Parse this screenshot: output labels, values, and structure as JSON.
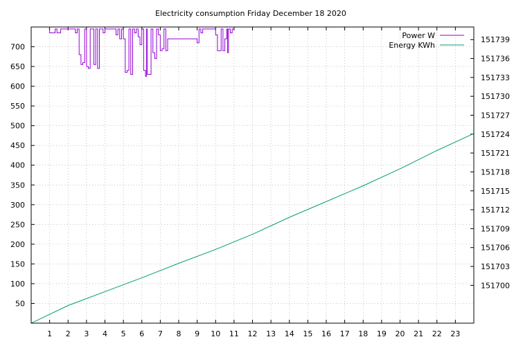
{
  "chart_data": {
    "type": "line",
    "title": "Electricity consumption Friday December 18 2020",
    "xlabel": "",
    "ylabel": "",
    "y2label": "",
    "grid": true,
    "legend_position": "top-right",
    "xlim": [
      0,
      24
    ],
    "ylim": [
      0,
      750
    ],
    "y2lim": [
      151694,
      151741
    ],
    "x_ticks": [
      "1",
      "2",
      "3",
      "4",
      "5",
      "6",
      "7",
      "8",
      "9",
      "10",
      "11",
      "12",
      "13",
      "14",
      "15",
      "16",
      "17",
      "18",
      "19",
      "20",
      "21",
      "22",
      "23"
    ],
    "y_ticks": [
      "50",
      "100",
      "150",
      "200",
      "250",
      "300",
      "350",
      "400",
      "450",
      "500",
      "550",
      "600",
      "650",
      "700"
    ],
    "y2_ticks": [
      "151700",
      "151703",
      "151706",
      "151709",
      "151712",
      "151715",
      "151718",
      "151721",
      "151724",
      "151727",
      "151730",
      "151733",
      "151736",
      "151739"
    ],
    "colors": {
      "power": "#9400d3",
      "energy": "#009e73",
      "grid": "#a0a0a0"
    },
    "series": [
      {
        "name": "Power W",
        "axis": "y1",
        "style": "steps",
        "x": [
          0.95,
          1.0,
          1.3,
          1.4,
          1.6,
          1.7,
          2.4,
          2.5,
          2.6,
          2.7,
          2.8,
          2.9,
          3.0,
          3.1,
          3.2,
          3.35,
          3.4,
          3.5,
          3.6,
          3.7,
          3.8,
          3.9,
          4.0,
          4.5,
          4.6,
          4.7,
          4.8,
          4.9,
          5.0,
          5.1,
          5.2,
          5.3,
          5.4,
          5.5,
          5.55,
          5.6,
          5.7,
          5.8,
          5.9,
          6.0,
          6.1,
          6.2,
          6.25,
          6.3,
          6.4,
          6.5,
          6.6,
          6.7,
          6.8,
          6.9,
          7.0,
          7.1,
          7.2,
          7.3,
          7.4,
          9.0,
          9.1,
          9.2,
          9.3,
          10.0,
          10.1,
          10.2,
          10.3,
          10.4,
          10.5,
          10.6,
          10.65,
          10.7,
          10.8,
          10.9
        ],
        "values": [
          745,
          735,
          745,
          735,
          745,
          745,
          735,
          745,
          680,
          655,
          660,
          745,
          650,
          645,
          745,
          745,
          655,
          745,
          645,
          745,
          745,
          735,
          745,
          745,
          730,
          745,
          720,
          745,
          720,
          635,
          640,
          745,
          630,
          745,
          745,
          735,
          745,
          725,
          705,
          745,
          640,
          625,
          745,
          630,
          630,
          745,
          685,
          670,
          745,
          730,
          690,
          695,
          745,
          690,
          720,
          710,
          745,
          735,
          745,
          730,
          690,
          690,
          745,
          690,
          720,
          745,
          685,
          745,
          735,
          745
        ]
      },
      {
        "name": "Energy KWh",
        "axis": "y2",
        "style": "line",
        "x": [
          0,
          2,
          4,
          6,
          8,
          10,
          12,
          14,
          16,
          18,
          20,
          22,
          24
        ],
        "values": [
          151694.0,
          151696.8,
          151699.0,
          151701.2,
          151703.5,
          151705.7,
          151708.1,
          151710.8,
          151713.3,
          151715.8,
          151718.5,
          151721.4,
          151724.1
        ]
      }
    ]
  }
}
